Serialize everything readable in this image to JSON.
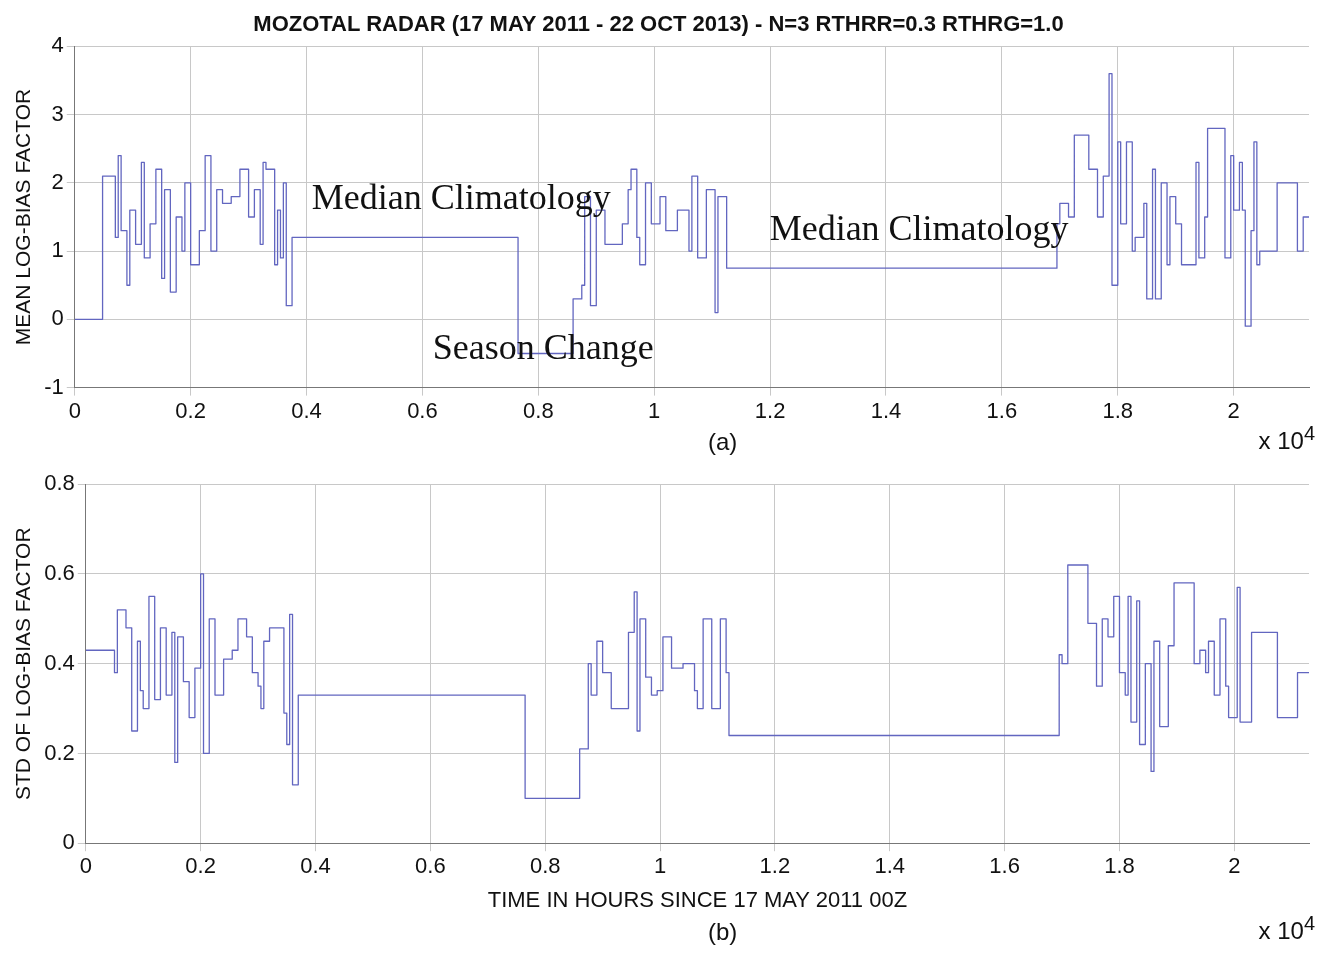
{
  "chart_data": [
    {
      "type": "step",
      "title": "MOZOTAL RADAR (17 MAY 2011 - 22 OCT 2013) - N=3 RTHRR=0.3 RTHRG=1.0",
      "ylabel": "MEAN LOG-BIAS FACTOR",
      "xlim": [
        0,
        2.13
      ],
      "xticks": [
        0,
        0.2,
        0.4,
        0.6,
        0.8,
        1,
        1.2,
        1.4,
        1.6,
        1.8,
        2
      ],
      "ylim": [
        -1,
        4
      ],
      "yticks": [
        -1,
        0,
        1,
        2,
        3,
        4
      ],
      "grid": true,
      "legend": false,
      "line_style": "solid",
      "marker": "none",
      "series": [
        {
          "color": "#6266c0",
          "x": [
            0,
            0.048,
            0.07,
            0.075,
            0.08,
            0.09,
            0.095,
            0.105,
            0.115,
            0.12,
            0.13,
            0.14,
            0.15,
            0.155,
            0.165,
            0.175,
            0.185,
            0.19,
            0.2,
            0.215,
            0.225,
            0.235,
            0.245,
            0.255,
            0.27,
            0.285,
            0.3,
            0.31,
            0.32,
            0.325,
            0.33,
            0.345,
            0.35,
            0.355,
            0.36,
            0.365,
            0.375,
            0.765,
            0.86,
            0.875,
            0.88,
            0.89,
            0.9,
            0.915,
            0.945,
            0.955,
            0.96,
            0.97,
            0.975,
            0.985,
            0.995,
            1.01,
            1.02,
            1.04,
            1.06,
            1.065,
            1.075,
            1.09,
            1.105,
            1.11,
            1.125,
            1.695,
            1.7,
            1.715,
            1.725,
            1.75,
            1.765,
            1.775,
            1.785,
            1.79,
            1.8,
            1.805,
            1.815,
            1.825,
            1.83,
            1.845,
            1.85,
            1.86,
            1.865,
            1.875,
            1.885,
            1.89,
            1.9,
            1.91,
            1.935,
            1.94,
            1.95,
            1.955,
            1.985,
            1.995,
            2.0,
            2.01,
            2.015,
            2.02,
            2.03,
            2.035,
            2.04,
            2.045,
            2.075,
            2.11,
            2.12,
            2.13
          ],
          "values": [
            0,
            2.1,
            1.2,
            2.4,
            1.3,
            0.5,
            1.6,
            1.1,
            2.3,
            0.9,
            1.4,
            2.2,
            0.6,
            1.9,
            0.4,
            1.5,
            1.0,
            2.0,
            0.8,
            1.3,
            2.4,
            1.0,
            1.9,
            1.7,
            1.8,
            2.2,
            1.5,
            1.9,
            1.1,
            2.3,
            2.2,
            0.8,
            1.6,
            0.9,
            2.0,
            0.2,
            1.2,
            -0.5,
            0.3,
            0.5,
            1.8,
            0.2,
            1.6,
            1.1,
            1.4,
            1.9,
            2.2,
            1.2,
            0.8,
            2.0,
            1.4,
            1.8,
            1.3,
            1.6,
            1.0,
            2.1,
            0.9,
            1.9,
            0.1,
            1.8,
            0.75,
            1.4,
            1.7,
            1.5,
            2.7,
            2.2,
            1.5,
            2.1,
            3.6,
            0.5,
            2.6,
            1.4,
            2.6,
            1.0,
            1.2,
            1.7,
            0.3,
            2.2,
            0.3,
            2.0,
            0.8,
            1.8,
            1.4,
            0.8,
            2.3,
            0.9,
            1.5,
            2.8,
            0.9,
            2.4,
            1.6,
            2.3,
            1.6,
            -0.1,
            1.3,
            2.6,
            0.8,
            1.0,
            2.0,
            1.0,
            1.5,
            1.5
          ]
        }
      ],
      "annotations": [
        "x 10$^{4}$",
        "(a)",
        "Median Climatology",
        "Season Change",
        "Median Climatology"
      ]
    },
    {
      "type": "step",
      "xlabel": "TIME IN HOURS SINCE 17 MAY 2011 00Z",
      "ylabel": "STD OF LOG-BIAS FACTOR",
      "xlim": [
        0,
        2.13
      ],
      "xticks": [
        0,
        0.2,
        0.4,
        0.6,
        0.8,
        1,
        1.2,
        1.4,
        1.6,
        1.8,
        2
      ],
      "ylim": [
        0,
        0.8
      ],
      "yticks": [
        0,
        0.2,
        0.4,
        0.6,
        0.8
      ],
      "grid": true,
      "legend": false,
      "line_style": "solid",
      "marker": "none",
      "series": [
        {
          "color": "#6266c0",
          "x": [
            0,
            0.05,
            0.055,
            0.07,
            0.08,
            0.09,
            0.095,
            0.1,
            0.11,
            0.12,
            0.13,
            0.14,
            0.15,
            0.155,
            0.16,
            0.17,
            0.18,
            0.19,
            0.2,
            0.205,
            0.215,
            0.225,
            0.24,
            0.255,
            0.265,
            0.28,
            0.29,
            0.3,
            0.305,
            0.31,
            0.32,
            0.345,
            0.35,
            0.355,
            0.36,
            0.37,
            0.765,
            0.86,
            0.875,
            0.88,
            0.89,
            0.9,
            0.915,
            0.945,
            0.955,
            0.96,
            0.965,
            0.975,
            0.985,
            0.995,
            1.005,
            1.02,
            1.04,
            1.06,
            1.065,
            1.075,
            1.09,
            1.105,
            1.115,
            1.12,
            1.695,
            1.7,
            1.71,
            1.745,
            1.76,
            1.77,
            1.78,
            1.79,
            1.8,
            1.81,
            1.815,
            1.82,
            1.83,
            1.835,
            1.845,
            1.855,
            1.86,
            1.87,
            1.885,
            1.895,
            1.93,
            1.94,
            1.95,
            1.955,
            1.965,
            1.975,
            1.985,
            1.99,
            2.005,
            2.01,
            2.03,
            2.075,
            2.11,
            2.13
          ],
          "values": [
            0.43,
            0.38,
            0.52,
            0.48,
            0.25,
            0.45,
            0.34,
            0.3,
            0.55,
            0.32,
            0.48,
            0.33,
            0.47,
            0.18,
            0.46,
            0.36,
            0.28,
            0.39,
            0.6,
            0.2,
            0.5,
            0.33,
            0.41,
            0.43,
            0.5,
            0.46,
            0.38,
            0.35,
            0.3,
            0.45,
            0.48,
            0.29,
            0.22,
            0.51,
            0.13,
            0.33,
            0.1,
            0.21,
            0.4,
            0.33,
            0.45,
            0.38,
            0.3,
            0.47,
            0.56,
            0.25,
            0.5,
            0.37,
            0.33,
            0.34,
            0.46,
            0.39,
            0.4,
            0.34,
            0.3,
            0.5,
            0.3,
            0.5,
            0.38,
            0.24,
            0.42,
            0.4,
            0.62,
            0.49,
            0.35,
            0.5,
            0.46,
            0.55,
            0.38,
            0.33,
            0.55,
            0.27,
            0.54,
            0.22,
            0.4,
            0.16,
            0.45,
            0.26,
            0.44,
            0.58,
            0.4,
            0.43,
            0.38,
            0.45,
            0.33,
            0.5,
            0.35,
            0.28,
            0.57,
            0.27,
            0.47,
            0.28,
            0.38,
            0.38
          ]
        }
      ],
      "annotations": [
        "x 10$^{4}$",
        "(b)"
      ]
    }
  ]
}
